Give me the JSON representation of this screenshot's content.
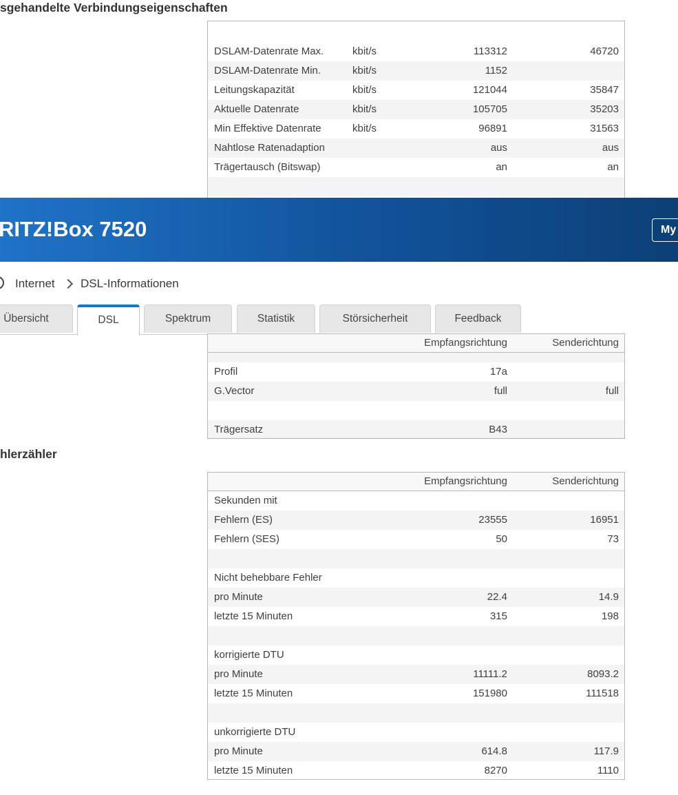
{
  "page": {
    "heading_top": "sgehandelte Verbindungseigenschaften",
    "heading_errors": "hlerzähler"
  },
  "banner": {
    "title": "RITZ!Box 7520",
    "myfritz_label": "My",
    "gradient_left": "#1f73c8",
    "gradient_right": "#0c4076"
  },
  "breadcrumb": {
    "items": [
      "Internet",
      "DSL-Informationen"
    ]
  },
  "tabs": [
    {
      "label": "Übersicht",
      "active": false
    },
    {
      "label": "DSL",
      "active": true
    },
    {
      "label": "Spektrum",
      "active": false
    },
    {
      "label": "Statistik",
      "active": false
    },
    {
      "label": "Störsicherheit",
      "active": false
    },
    {
      "label": "Feedback",
      "active": false
    }
  ],
  "column_headers": {
    "rx": "Empfangsrichtung",
    "tx": "Senderichtung"
  },
  "tables": {
    "connection_properties": {
      "rows": [
        {
          "label": "DSLAM-Datenrate Max.",
          "unit": "kbit/s",
          "rx": "113312",
          "tx": "46720",
          "shaded": false
        },
        {
          "label": "DSLAM-Datenrate Min.",
          "unit": "kbit/s",
          "rx": "1152",
          "tx": "",
          "shaded": true
        },
        {
          "label": "Leitungskapazität",
          "unit": "kbit/s",
          "rx": "121044",
          "tx": "35847",
          "shaded": false
        },
        {
          "label": "Aktuelle Datenrate",
          "unit": "kbit/s",
          "rx": "105705",
          "tx": "35203",
          "shaded": true
        },
        {
          "label": "Min Effektive Datenrate",
          "unit": "kbit/s",
          "rx": "96891",
          "tx": "31563",
          "shaded": false
        },
        {
          "label": "Nahtlose Ratenadaption",
          "unit": "",
          "rx": "aus",
          "tx": "aus",
          "shaded": true
        },
        {
          "label": "Trägertausch (Bitswap)",
          "unit": "",
          "rx": "an",
          "tx": "an",
          "shaded": false
        },
        {
          "blank": true,
          "shaded": true
        }
      ]
    },
    "dsl_details": {
      "rows": [
        {
          "blank": true,
          "shaded": true,
          "small": true
        },
        {
          "label": "Profil",
          "unit": "",
          "rx": "17a",
          "tx": "",
          "shaded": false
        },
        {
          "label": "G.Vector",
          "unit": "",
          "rx": "full",
          "tx": "full",
          "shaded": true
        },
        {
          "blank": true,
          "shaded": false
        },
        {
          "label": "Trägersatz",
          "unit": "",
          "rx": "B43",
          "tx": "",
          "shaded": true
        }
      ]
    },
    "error_counters": {
      "rows": [
        {
          "label": "Sekunden mit",
          "unit": "",
          "rx": "",
          "tx": "",
          "shaded": false
        },
        {
          "label": "Fehlern (ES)",
          "unit": "",
          "rx": "23555",
          "tx": "16951",
          "shaded": true
        },
        {
          "label": "Fehlern (SES)",
          "unit": "",
          "rx": "50",
          "tx": "73",
          "shaded": false
        },
        {
          "blank": true,
          "shaded": true
        },
        {
          "label": "Nicht behebbare Fehler",
          "unit": "",
          "rx": "",
          "tx": "",
          "shaded": false
        },
        {
          "label": "pro Minute",
          "unit": "",
          "rx": "22.4",
          "tx": "14.9",
          "shaded": true
        },
        {
          "label": "letzte 15 Minuten",
          "unit": "",
          "rx": "315",
          "tx": "198",
          "shaded": false
        },
        {
          "blank": true,
          "shaded": true
        },
        {
          "label": "korrigierte DTU",
          "unit": "",
          "rx": "",
          "tx": "",
          "shaded": false
        },
        {
          "label": "pro Minute",
          "unit": "",
          "rx": "11111.2",
          "tx": "8093.2",
          "shaded": true
        },
        {
          "label": "letzte 15 Minuten",
          "unit": "",
          "rx": "151980",
          "tx": "111518",
          "shaded": false
        },
        {
          "blank": true,
          "shaded": true
        },
        {
          "label": "unkorrigierte DTU",
          "unit": "",
          "rx": "",
          "tx": "",
          "shaded": false
        },
        {
          "label": "pro Minute",
          "unit": "",
          "rx": "614.8",
          "tx": "117.9",
          "shaded": true
        },
        {
          "label": "letzte 15 Minuten",
          "unit": "",
          "rx": "8270",
          "tx": "1110",
          "shaded": false
        }
      ]
    }
  },
  "colors": {
    "accent_blue": "#1478ca",
    "stripe_gray": "#f4f4f4",
    "table_border": "#b7b7b7"
  }
}
